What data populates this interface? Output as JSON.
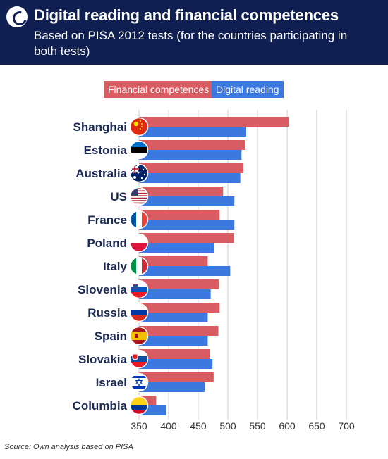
{
  "header": {
    "title": "Digital reading and financial competences",
    "subtitle": "Based on PISA 2012 tests (for the countries participating in both tests)"
  },
  "legend": {
    "financial": "Financial competences",
    "digital": "Digital reading"
  },
  "source": "Source: Own analysis based on PISA",
  "colors": {
    "header_bg": "#0f1f52",
    "financial": "#d95c63",
    "digital": "#3b78e0",
    "grid": "#cccccc",
    "label": "#1b2a55"
  },
  "chart_data": {
    "type": "bar",
    "orientation": "horizontal",
    "categories": [
      "Shanghai",
      "Estonia",
      "Australia",
      "US",
      "France",
      "Poland",
      "Italy",
      "Slovenia",
      "Russia",
      "Spain",
      "Slovakia",
      "Israel",
      "Columbia"
    ],
    "flags": [
      "china-flag-icon",
      "estonia-flag-icon",
      "australia-flag-icon",
      "us-flag-icon",
      "france-flag-icon",
      "poland-flag-icon",
      "italy-flag-icon",
      "slovenia-flag-icon",
      "russia-flag-icon",
      "spain-flag-icon",
      "slovakia-flag-icon",
      "israel-flag-icon",
      "colombia-flag-icon"
    ],
    "series": [
      {
        "name": "Financial competences",
        "values": [
          603,
          529,
          526,
          492,
          486,
          510,
          466,
          485,
          486,
          484,
          470,
          476,
          379
        ]
      },
      {
        "name": "Digital reading",
        "values": [
          531,
          523,
          521,
          511,
          511,
          477,
          504,
          471,
          466,
          466,
          474,
          461,
          396
        ]
      }
    ],
    "xlim": [
      350,
      720
    ],
    "xticks": [
      "350",
      "400",
      "450",
      "500",
      "550",
      "600",
      "650",
      "700"
    ],
    "grid": true
  }
}
